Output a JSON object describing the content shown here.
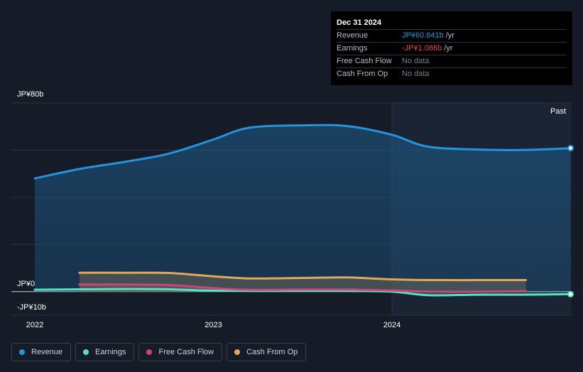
{
  "chart_data": {
    "type": "area",
    "title": "",
    "xlabel": "",
    "ylabel": "",
    "y_tick_labels": {
      "top": "JP¥80b",
      "zero": "JP¥0",
      "bottom": "-JP¥10b"
    },
    "ylim": [
      -10,
      80
    ],
    "x_ticks": [
      {
        "label": "2022",
        "value": 2022.0
      },
      {
        "label": "2023",
        "value": 2023.0
      },
      {
        "label": "2024",
        "value": 2024.0
      }
    ],
    "xlim": [
      2021.87,
      2025.0
    ],
    "region_label": "Past",
    "region_start": 2024.0,
    "grid": true,
    "series": [
      {
        "name": "Revenue",
        "color": "#2394df",
        "x": [
          2022.0,
          2022.25,
          2022.5,
          2022.75,
          2023.0,
          2023.2,
          2023.5,
          2023.75,
          2024.0,
          2024.2,
          2024.5,
          2024.75,
          2025.0
        ],
        "y": [
          48.0,
          52.0,
          55.0,
          58.5,
          64.5,
          69.5,
          70.5,
          70.2,
          66.5,
          61.5,
          60.2,
          60.1,
          60.841
        ]
      },
      {
        "name": "Earnings",
        "color": "#58e0c4",
        "x": [
          2022.0,
          2022.5,
          2022.75,
          2023.0,
          2023.5,
          2023.75,
          2024.0,
          2024.2,
          2024.5,
          2024.75,
          2025.0
        ],
        "y": [
          0.8,
          1.1,
          1.0,
          0.4,
          0.3,
          0.3,
          0.0,
          -1.5,
          -1.3,
          -1.3,
          -1.086
        ]
      },
      {
        "name": "Free Cash Flow",
        "color": "#c8467a",
        "x": [
          2022.25,
          2022.5,
          2022.75,
          2023.0,
          2023.2,
          2023.5,
          2023.75,
          2024.0,
          2024.2,
          2024.5,
          2024.75
        ],
        "y": [
          3.0,
          3.0,
          2.8,
          1.5,
          0.8,
          0.9,
          0.9,
          0.5,
          0.0,
          0.0,
          0.2
        ]
      },
      {
        "name": "Cash From Op",
        "color": "#e3a75a",
        "x": [
          2022.25,
          2022.5,
          2022.75,
          2023.0,
          2023.2,
          2023.5,
          2023.75,
          2024.0,
          2024.2,
          2024.5,
          2024.75
        ],
        "y": [
          8.0,
          8.0,
          7.9,
          6.5,
          5.6,
          5.8,
          6.0,
          5.2,
          4.9,
          4.9,
          4.9
        ]
      }
    ]
  },
  "tooltip": {
    "date": "Dec 31 2024",
    "rows": [
      {
        "label": "Revenue",
        "value": "JP¥60.841b",
        "unit": "/yr",
        "color": "#2394df"
      },
      {
        "label": "Earnings",
        "value": "-JP¥1.086b",
        "unit": "/yr",
        "color": "#e64646"
      },
      {
        "label": "Free Cash Flow",
        "value": "No data",
        "unit": "",
        "color": ""
      },
      {
        "label": "Cash From Op",
        "value": "No data",
        "unit": "",
        "color": ""
      }
    ]
  },
  "legend": [
    {
      "label": "Revenue",
      "color": "#2394df"
    },
    {
      "label": "Earnings",
      "color": "#58e0c4"
    },
    {
      "label": "Free Cash Flow",
      "color": "#c8467a"
    },
    {
      "label": "Cash From Op",
      "color": "#e3a75a"
    }
  ]
}
